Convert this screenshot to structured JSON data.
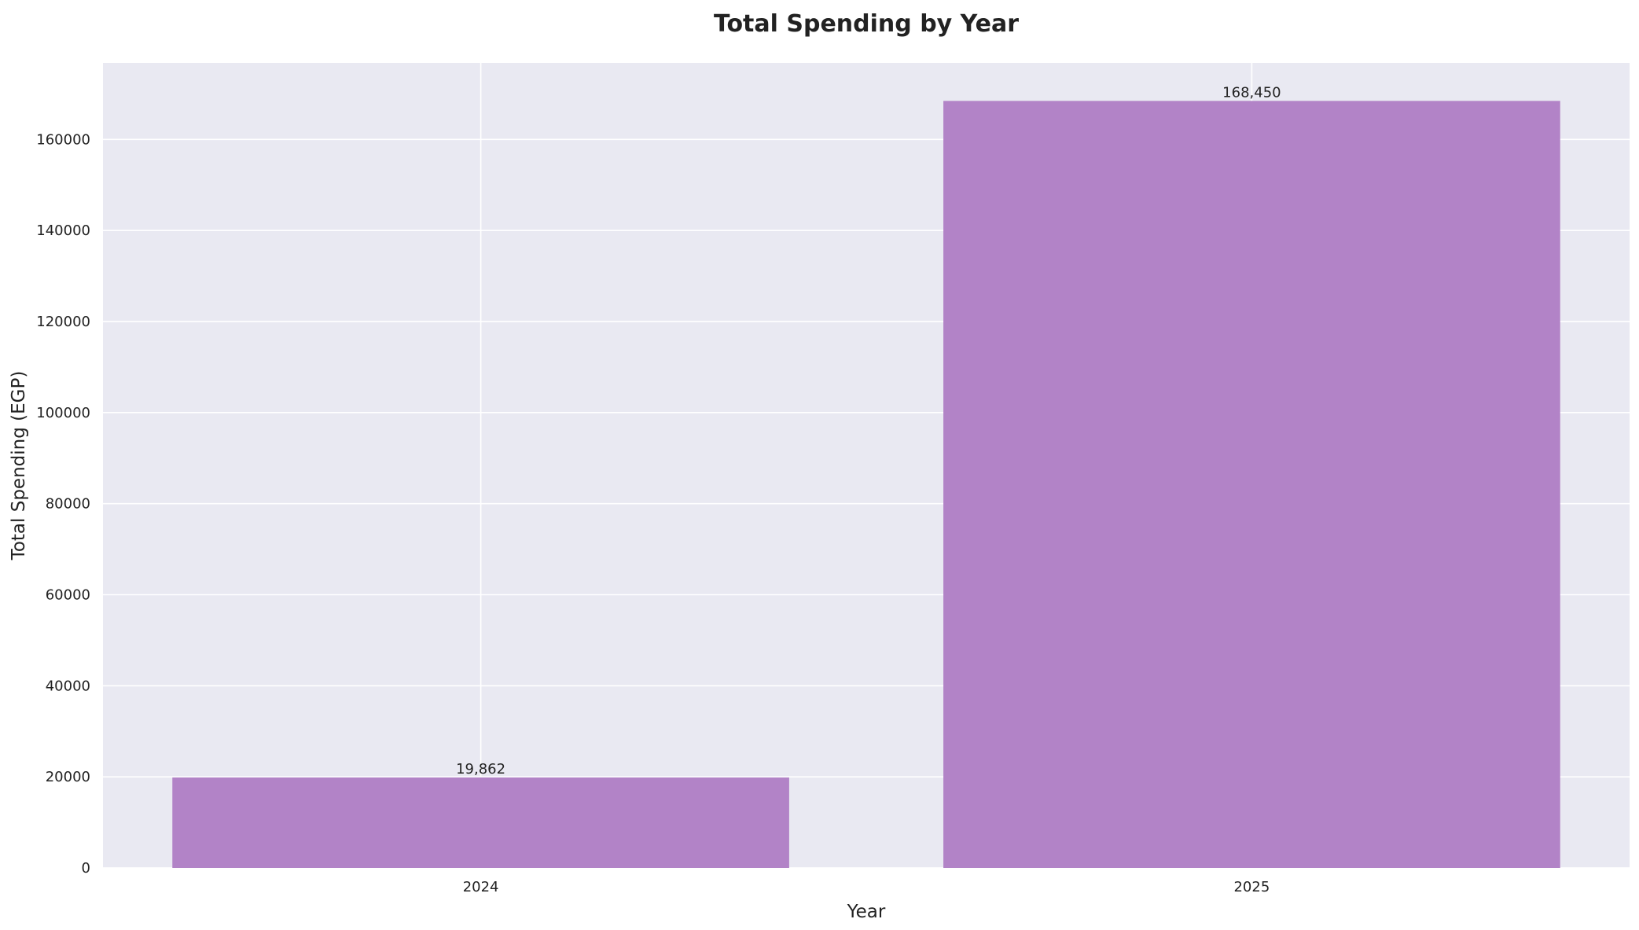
{
  "chart_data": {
    "type": "bar",
    "title": "Total Spending by Year",
    "xlabel": "Year",
    "ylabel": "Total Spending (EGP)",
    "categories": [
      "2024",
      "2025"
    ],
    "values": [
      19862,
      168450
    ],
    "data_labels": [
      "19,862",
      "168,450"
    ],
    "ylim": [
      0,
      176800
    ],
    "yticks": [
      0,
      20000,
      40000,
      60000,
      80000,
      100000,
      120000,
      140000,
      160000
    ],
    "ytick_labels": [
      "0",
      "20000",
      "40000",
      "60000",
      "80000",
      "100000",
      "120000",
      "140000",
      "160000"
    ],
    "grid": true,
    "colors": {
      "bar": "#b283c7",
      "plot_background": "#e9e9f2",
      "grid": "#ffffff",
      "text": "#222222"
    }
  }
}
